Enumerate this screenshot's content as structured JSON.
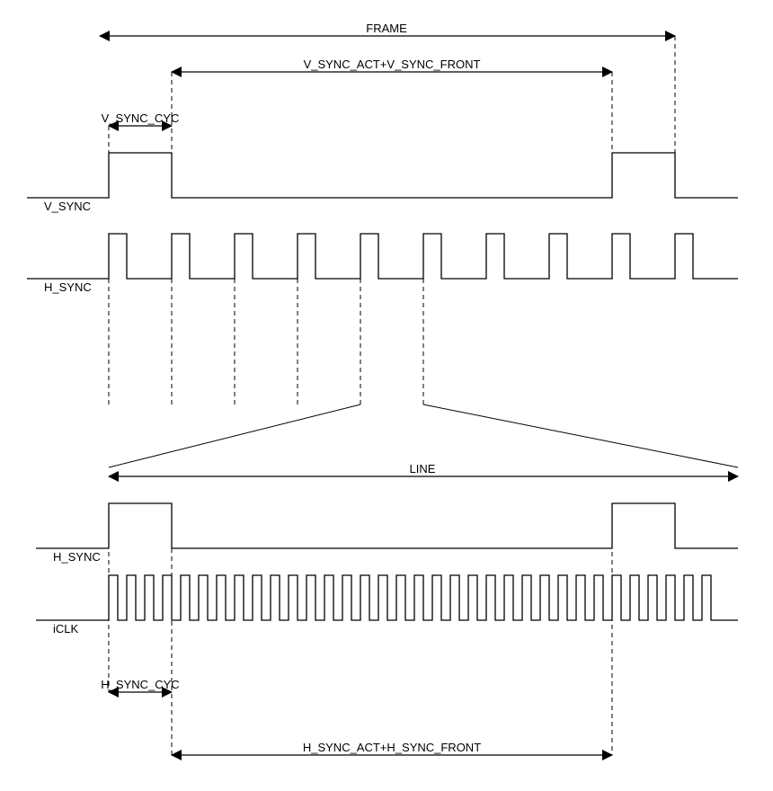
{
  "labels": {
    "frame": "FRAME",
    "v_sync_act_front": "V_SYNC_ACT+V_SYNC_FRONT",
    "v_sync_cyc": "V_SYNC_CYC",
    "v_sync": "V_SYNC",
    "h_sync_top": "H_SYNC",
    "line": "LINE",
    "h_sync_bottom": "H_SYNC",
    "iclk": "iCLK",
    "h_sync_cyc": "H_SYNC_CYC",
    "h_sync_act_front": "H_SYNC_ACT+H_SYNC_FRONT"
  }
}
